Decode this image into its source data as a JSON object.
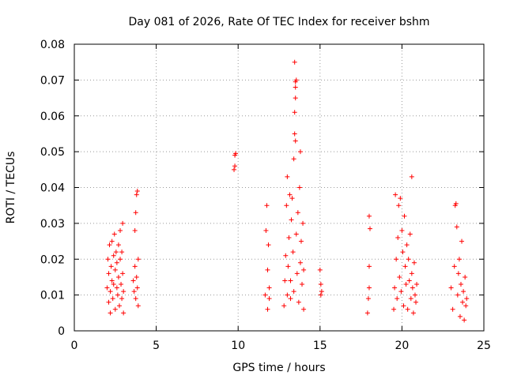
{
  "chart_data": {
    "type": "scatter",
    "title": "Day 081 of 2026, Rate Of TEC Index for receiver bshm",
    "xlabel": "GPS time / hours",
    "ylabel": "ROTI / TECUs",
    "xlim": [
      0,
      25
    ],
    "ylim": [
      0,
      0.08
    ],
    "xticks": [
      0,
      5,
      10,
      15,
      20,
      25
    ],
    "yticks": [
      0,
      0.01,
      0.02,
      0.03,
      0.04,
      0.05,
      0.06,
      0.07,
      0.08
    ],
    "xtick_labels": [
      "0",
      "5",
      "10",
      "15",
      "20",
      "25"
    ],
    "ytick_labels": [
      "0",
      "0.01",
      "0.02",
      "0.03",
      "0.04",
      "0.05",
      "0.06",
      "0.07",
      "0.08"
    ],
    "grid": true,
    "marker": "+",
    "series": [
      {
        "color": "#ff0000",
        "points": [
          [
            2.0,
            0.012
          ],
          [
            2.05,
            0.02
          ],
          [
            2.1,
            0.008
          ],
          [
            2.1,
            0.016
          ],
          [
            2.15,
            0.024
          ],
          [
            2.2,
            0.011
          ],
          [
            2.2,
            0.005
          ],
          [
            2.25,
            0.018
          ],
          [
            2.3,
            0.014
          ],
          [
            2.3,
            0.025
          ],
          [
            2.35,
            0.009
          ],
          [
            2.4,
            0.021
          ],
          [
            2.4,
            0.013
          ],
          [
            2.45,
            0.027
          ],
          [
            2.5,
            0.006
          ],
          [
            2.5,
            0.017
          ],
          [
            2.55,
            0.022
          ],
          [
            2.6,
            0.012
          ],
          [
            2.6,
            0.019
          ],
          [
            2.65,
            0.01
          ],
          [
            2.7,
            0.024
          ],
          [
            2.7,
            0.015
          ],
          [
            2.75,
            0.007
          ],
          [
            2.8,
            0.02
          ],
          [
            2.8,
            0.028
          ],
          [
            2.85,
            0.013
          ],
          [
            2.9,
            0.009
          ],
          [
            2.9,
            0.022
          ],
          [
            2.95,
            0.016
          ],
          [
            2.95,
            0.03
          ],
          [
            3.0,
            0.011
          ],
          [
            3.0,
            0.005
          ],
          [
            3.6,
            0.014
          ],
          [
            3.65,
            0.011
          ],
          [
            3.7,
            0.018
          ],
          [
            3.7,
            0.028
          ],
          [
            3.75,
            0.033
          ],
          [
            3.75,
            0.009
          ],
          [
            3.8,
            0.038
          ],
          [
            3.8,
            0.015
          ],
          [
            3.85,
            0.039
          ],
          [
            3.85,
            0.012
          ],
          [
            3.9,
            0.02
          ],
          [
            3.9,
            0.007
          ],
          [
            9.75,
            0.045
          ],
          [
            9.8,
            0.049
          ],
          [
            9.85,
            0.0495
          ],
          [
            9.8,
            0.046
          ],
          [
            11.65,
            0.01
          ],
          [
            11.7,
            0.028
          ],
          [
            11.75,
            0.035
          ],
          [
            11.8,
            0.017
          ],
          [
            11.8,
            0.006
          ],
          [
            11.85,
            0.024
          ],
          [
            11.9,
            0.012
          ],
          [
            11.9,
            0.009
          ],
          [
            12.8,
            0.007
          ],
          [
            12.85,
            0.014
          ],
          [
            12.9,
            0.021
          ],
          [
            12.95,
            0.035
          ],
          [
            13.0,
            0.043
          ],
          [
            13.0,
            0.01
          ],
          [
            13.05,
            0.018
          ],
          [
            13.1,
            0.026
          ],
          [
            13.15,
            0.038
          ],
          [
            13.2,
            0.009
          ],
          [
            13.2,
            0.014
          ],
          [
            13.25,
            0.031
          ],
          [
            13.3,
            0.037
          ],
          [
            13.35,
            0.022
          ],
          [
            13.4,
            0.048
          ],
          [
            13.4,
            0.011
          ],
          [
            13.45,
            0.055
          ],
          [
            13.45,
            0.061
          ],
          [
            13.5,
            0.065
          ],
          [
            13.5,
            0.068
          ],
          [
            13.5,
            0.0695
          ],
          [
            13.55,
            0.07
          ],
          [
            13.45,
            0.075
          ],
          [
            13.5,
            0.053
          ],
          [
            13.55,
            0.027
          ],
          [
            13.6,
            0.016
          ],
          [
            13.65,
            0.033
          ],
          [
            13.7,
            0.008
          ],
          [
            13.75,
            0.04
          ],
          [
            13.8,
            0.05
          ],
          [
            13.8,
            0.019
          ],
          [
            13.85,
            0.025
          ],
          [
            13.9,
            0.013
          ],
          [
            13.95,
            0.03
          ],
          [
            14.0,
            0.006
          ],
          [
            14.0,
            0.017
          ],
          [
            15.0,
            0.017
          ],
          [
            15.05,
            0.013
          ],
          [
            15.1,
            0.011
          ],
          [
            15.05,
            0.01
          ],
          [
            17.9,
            0.005
          ],
          [
            17.95,
            0.009
          ],
          [
            18.0,
            0.012
          ],
          [
            18.0,
            0.018
          ],
          [
            18.05,
            0.0285
          ],
          [
            18.0,
            0.032
          ],
          [
            19.5,
            0.006
          ],
          [
            19.55,
            0.012
          ],
          [
            19.6,
            0.038
          ],
          [
            19.65,
            0.02
          ],
          [
            19.7,
            0.009
          ],
          [
            19.75,
            0.026
          ],
          [
            19.8,
            0.035
          ],
          [
            19.85,
            0.015
          ],
          [
            19.9,
            0.037
          ],
          [
            19.95,
            0.011
          ],
          [
            20.0,
            0.028
          ],
          [
            20.05,
            0.022
          ],
          [
            20.1,
            0.007
          ],
          [
            20.15,
            0.032
          ],
          [
            20.2,
            0.018
          ],
          [
            20.25,
            0.013
          ],
          [
            20.3,
            0.024
          ],
          [
            20.35,
            0.006
          ],
          [
            20.4,
            0.02
          ],
          [
            20.45,
            0.014
          ],
          [
            20.5,
            0.027
          ],
          [
            20.55,
            0.009
          ],
          [
            20.6,
            0.043
          ],
          [
            20.6,
            0.016
          ],
          [
            20.65,
            0.012
          ],
          [
            20.7,
            0.005
          ],
          [
            20.75,
            0.019
          ],
          [
            20.8,
            0.01
          ],
          [
            20.85,
            0.008
          ],
          [
            20.9,
            0.013
          ],
          [
            23.0,
            0.012
          ],
          [
            23.1,
            0.006
          ],
          [
            23.2,
            0.018
          ],
          [
            23.25,
            0.035
          ],
          [
            23.3,
            0.0355
          ],
          [
            23.35,
            0.029
          ],
          [
            23.4,
            0.01
          ],
          [
            23.45,
            0.016
          ],
          [
            23.5,
            0.02
          ],
          [
            23.55,
            0.004
          ],
          [
            23.6,
            0.013
          ],
          [
            23.65,
            0.025
          ],
          [
            23.7,
            0.008
          ],
          [
            23.75,
            0.011
          ],
          [
            23.8,
            0.003
          ],
          [
            23.85,
            0.015
          ],
          [
            23.9,
            0.007
          ],
          [
            23.95,
            0.009
          ]
        ]
      }
    ]
  }
}
